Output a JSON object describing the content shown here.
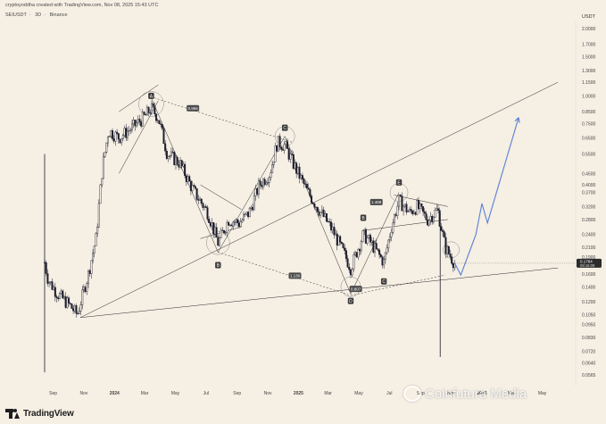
{
  "header": {
    "creator_line": "cryptoyoddha created with TradingView.com, Nov 08, 2025 15:43 UTC",
    "symbol": "SEIUSDT",
    "timeframe": "3D",
    "exchange": "Binance"
  },
  "currency_badge": "USDT",
  "price_badge": {
    "price": "0.1784",
    "countdown": "08:16:09"
  },
  "footer": {
    "brand": "TradingView"
  },
  "watermark": "Coinfutura Media",
  "colors": {
    "background": "#f5efe4",
    "candle": "#1c1c2c",
    "projection": "#5b7fd6",
    "trendline": "#2b2b2b"
  },
  "chart_data": {
    "type": "candlestick",
    "y_scale": "log",
    "y_ticks": [
      "2.0000",
      "1.7000",
      "1.5000",
      "1.3000",
      "1.1500",
      "1.0000",
      "0.8500",
      "0.7500",
      "0.6500",
      "0.5500",
      "0.4500",
      "0.4000",
      "0.3700",
      "0.3200",
      "0.2800",
      "0.2400",
      "0.2100",
      "0.1900",
      "0.1600",
      "0.1400",
      "0.1200",
      "0.1050",
      "0.0950",
      "0.0830",
      "0.0720",
      "0.0640",
      "0.0565"
    ],
    "x_ticks": [
      "Sep",
      "Nov",
      "2024",
      "Mar",
      "May",
      "Jul",
      "Sep",
      "Nov",
      "2025",
      "Mar",
      "May",
      "Jul",
      "Sep",
      "Nov",
      "2026",
      "Mar",
      "May"
    ],
    "x_range": [
      "2023-08-15",
      "2026-06-01"
    ],
    "close_path": [
      {
        "date": "2023-08-15",
        "price": 0.18
      },
      {
        "date": "2023-08-22",
        "price": 0.15
      },
      {
        "date": "2023-09-10",
        "price": 0.13
      },
      {
        "date": "2023-10-05",
        "price": 0.115
      },
      {
        "date": "2023-10-19",
        "price": 0.105
      },
      {
        "date": "2023-11-10",
        "price": 0.16
      },
      {
        "date": "2023-11-25",
        "price": 0.23
      },
      {
        "date": "2023-12-08",
        "price": 0.48
      },
      {
        "date": "2023-12-20",
        "price": 0.7
      },
      {
        "date": "2024-01-10",
        "price": 0.65
      },
      {
        "date": "2024-02-05",
        "price": 0.72
      },
      {
        "date": "2024-02-28",
        "price": 0.8
      },
      {
        "date": "2024-03-14",
        "price": 0.88
      },
      {
        "date": "2024-03-28",
        "price": 0.8
      },
      {
        "date": "2024-04-15",
        "price": 0.55
      },
      {
        "date": "2024-05-10",
        "price": 0.5
      },
      {
        "date": "2024-06-05",
        "price": 0.38
      },
      {
        "date": "2024-07-05",
        "price": 0.3
      },
      {
        "date": "2024-07-25",
        "price": 0.22
      },
      {
        "date": "2024-08-15",
        "price": 0.28
      },
      {
        "date": "2024-09-05",
        "price": 0.27
      },
      {
        "date": "2024-09-25",
        "price": 0.3
      },
      {
        "date": "2024-10-15",
        "price": 0.4
      },
      {
        "date": "2024-11-05",
        "price": 0.45
      },
      {
        "date": "2024-11-20",
        "price": 0.62
      },
      {
        "date": "2024-12-05",
        "price": 0.6
      },
      {
        "date": "2024-12-25",
        "price": 0.48
      },
      {
        "date": "2025-01-20",
        "price": 0.37
      },
      {
        "date": "2025-02-15",
        "price": 0.3
      },
      {
        "date": "2025-03-10",
        "price": 0.25
      },
      {
        "date": "2025-04-05",
        "price": 0.19
      },
      {
        "date": "2025-04-15",
        "price": 0.17
      },
      {
        "date": "2025-05-10",
        "price": 0.24
      },
      {
        "date": "2025-05-25",
        "price": 0.22
      },
      {
        "date": "2025-06-20",
        "price": 0.18
      },
      {
        "date": "2025-07-05",
        "price": 0.26
      },
      {
        "date": "2025-07-20",
        "price": 0.34
      },
      {
        "date": "2025-08-10",
        "price": 0.3
      },
      {
        "date": "2025-08-25",
        "price": 0.32
      },
      {
        "date": "2025-09-15",
        "price": 0.28
      },
      {
        "date": "2025-10-05",
        "price": 0.31
      },
      {
        "date": "2025-10-20",
        "price": 0.21
      },
      {
        "date": "2025-11-08",
        "price": 0.178
      }
    ],
    "projection_path": [
      {
        "date": "2025-11-08",
        "price": 0.1784
      },
      {
        "date": "2025-11-20",
        "price": 0.158
      },
      {
        "date": "2025-12-20",
        "price": 0.24
      },
      {
        "date": "2026-01-01",
        "price": 0.33
      },
      {
        "date": "2026-01-12",
        "price": 0.27
      },
      {
        "date": "2026-03-15",
        "price": 0.8
      }
    ],
    "wave_labels": [
      {
        "text": "A",
        "date": "2024-03-14",
        "price": 1.0
      },
      {
        "text": "B",
        "date": "2024-07-25",
        "price": 0.175
      },
      {
        "text": "C",
        "date": "2024-12-05",
        "price": 0.72
      },
      {
        "text": "D",
        "date": "2025-04-15",
        "price": 0.121
      },
      {
        "text": "E",
        "date": "2025-07-20",
        "price": 0.41
      },
      {
        "text": "B",
        "date": "2025-05-10",
        "price": 0.285
      },
      {
        "text": "C",
        "date": "2025-06-20",
        "price": 0.148
      }
    ],
    "ratio_labels": [
      {
        "text": "0.966",
        "date": "2024-06-05",
        "price": 0.88
      },
      {
        "text": "1.136",
        "date": "2024-12-25",
        "price": 0.157
      },
      {
        "text": "0.807",
        "date": "2025-04-25",
        "price": 0.137
      },
      {
        "text": "1.488",
        "date": "2025-06-05",
        "price": 0.335
      }
    ],
    "current_price": 0.1784
  }
}
